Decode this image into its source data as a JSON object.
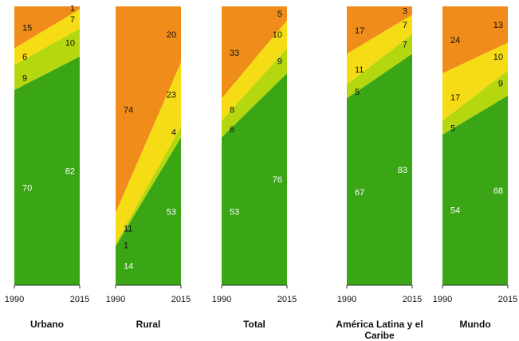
{
  "chart_data": {
    "type": "area",
    "x": [
      "1990",
      "2015"
    ],
    "ylim": [
      0,
      100
    ],
    "grid": false,
    "colors": {
      "green": "#3aa515",
      "lightgreen": "#b4d70f",
      "yellow": "#f5dc14",
      "orange": "#ef8c1a"
    },
    "panels": [
      {
        "title": "Urbano",
        "series": [
          {
            "color": "green",
            "values": [
              70,
              82
            ],
            "labels": [
              "70",
              "82"
            ]
          },
          {
            "color": "lightgreen",
            "values": [
              9,
              10
            ],
            "labels": [
              "9",
              "10"
            ]
          },
          {
            "color": "yellow",
            "values": [
              6,
              7
            ],
            "labels": [
              "6",
              "7"
            ]
          },
          {
            "color": "orange",
            "values": [
              15,
              1
            ],
            "labels": [
              "15",
              "1"
            ]
          }
        ]
      },
      {
        "title": "Rural",
        "series": [
          {
            "color": "green",
            "values": [
              14,
              53
            ],
            "labels": [
              "14",
              "53"
            ]
          },
          {
            "color": "lightgreen",
            "values": [
              1,
              4
            ],
            "labels": [
              "1",
              "4"
            ]
          },
          {
            "color": "yellow",
            "values": [
              11,
              23
            ],
            "labels": [
              "11",
              "23"
            ]
          },
          {
            "color": "orange",
            "values": [
              74,
              20
            ],
            "labels": [
              "74",
              "20"
            ]
          }
        ]
      },
      {
        "title": "Total",
        "series": [
          {
            "color": "green",
            "values": [
              53,
              76
            ],
            "labels": [
              "53",
              "76"
            ]
          },
          {
            "color": "lightgreen",
            "values": [
              6,
              9
            ],
            "labels": [
              "6",
              "9"
            ]
          },
          {
            "color": "yellow",
            "values": [
              8,
              10
            ],
            "labels": [
              "8",
              "10"
            ]
          },
          {
            "color": "orange",
            "values": [
              33,
              5
            ],
            "labels": [
              "33",
              "5"
            ]
          }
        ]
      },
      {
        "title": "América Latina y el Caribe",
        "series": [
          {
            "color": "green",
            "values": [
              67,
              83
            ],
            "labels": [
              "67",
              "83"
            ]
          },
          {
            "color": "lightgreen",
            "values": [
              5,
              7
            ],
            "labels": [
              "5",
              "7"
            ]
          },
          {
            "color": "yellow",
            "values": [
              11,
              7
            ],
            "labels": [
              "11",
              "7"
            ]
          },
          {
            "color": "orange",
            "values": [
              17,
              3
            ],
            "labels": [
              "17",
              "3"
            ]
          }
        ]
      },
      {
        "title": "Mundo",
        "series": [
          {
            "color": "green",
            "values": [
              54,
              68
            ],
            "labels": [
              "54",
              "68"
            ]
          },
          {
            "color": "lightgreen",
            "values": [
              5,
              9
            ],
            "labels": [
              "5",
              "9"
            ]
          },
          {
            "color": "yellow",
            "values": [
              17,
              10
            ],
            "labels": [
              "17",
              "10"
            ]
          },
          {
            "color": "orange",
            "values": [
              24,
              13
            ],
            "labels": [
              "24",
              "13"
            ]
          }
        ]
      }
    ]
  }
}
